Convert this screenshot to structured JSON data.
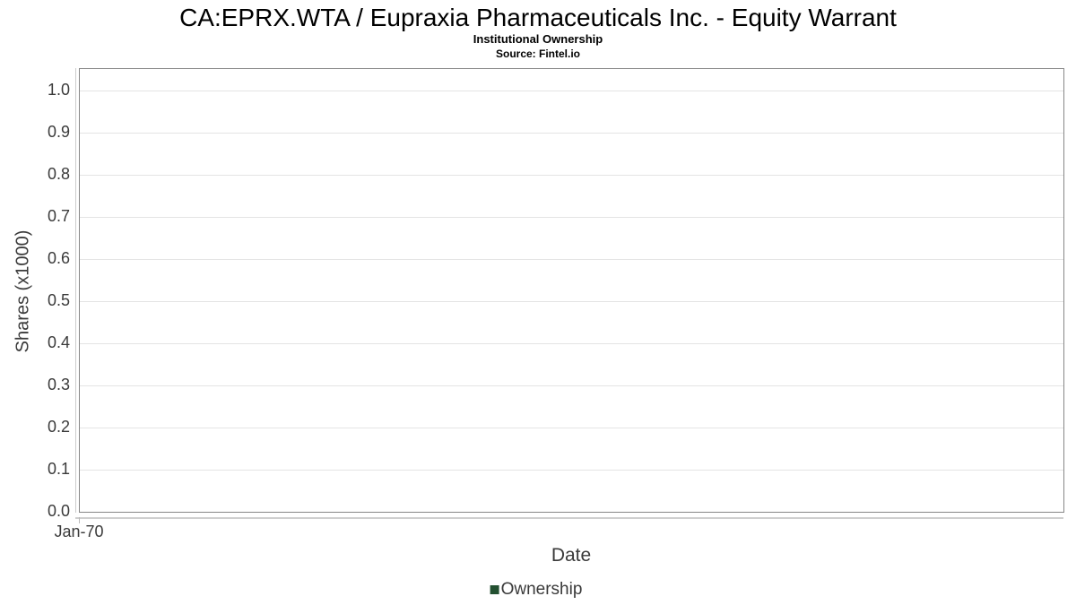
{
  "header": {
    "title": "CA:EPRX.WTA / Eupraxia Pharmaceuticals Inc. - Equity Warrant",
    "subtitle": "Institutional Ownership",
    "source": "Source: Fintel.io"
  },
  "chart_data": {
    "type": "line",
    "title": "CA:EPRX.WTA / Eupraxia Pharmaceuticals Inc. - Equity Warrant",
    "subtitle": "Institutional Ownership",
    "source": "Source: Fintel.io",
    "xlabel": "Date",
    "ylabel": "Shares (x1000)",
    "ylim": [
      0.0,
      1.0
    ],
    "ytick_step": 0.1,
    "yticks": [
      "0.0",
      "0.1",
      "0.2",
      "0.3",
      "0.4",
      "0.5",
      "0.6",
      "0.7",
      "0.8",
      "0.9",
      "1.0"
    ],
    "xticks": [
      "Jan-70"
    ],
    "grid": "horizontal",
    "legend_position": "bottom-center",
    "series": [
      {
        "name": "Ownership",
        "color": "#235031",
        "x": [],
        "values": []
      }
    ]
  },
  "colors": {
    "plot_border": "#888888",
    "gridline": "#e4e4e4",
    "axis_line": "#cccccc",
    "text": "#3a3a3a",
    "title_text": "#000000",
    "legend_marker": "#235031",
    "background": "#ffffff"
  }
}
